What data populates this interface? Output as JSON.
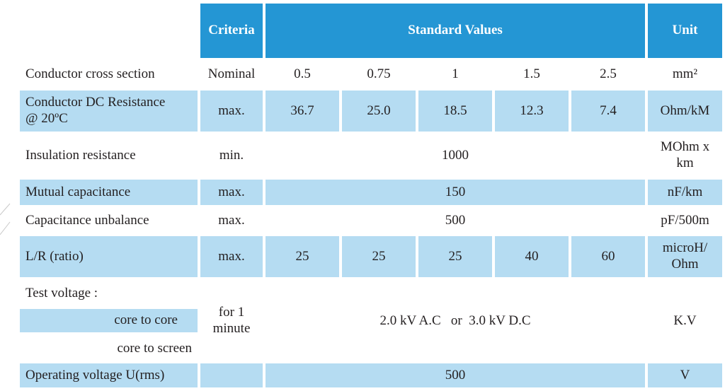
{
  "header": {
    "criteria": "Criteria",
    "standard_values": "Standard Values",
    "unit": "Unit"
  },
  "rows": {
    "cross_section": {
      "label": "Conductor cross section",
      "criteria": "Nominal",
      "values": [
        "0.5",
        "0.75",
        "1",
        "1.5",
        "2.5"
      ],
      "unit": "mm²"
    },
    "dc_resistance": {
      "label": "Conductor DC Resistance",
      "label_2": "@ 20ºC",
      "criteria": "max.",
      "values": [
        "36.7",
        "25.0",
        "18.5",
        "12.3",
        "7.4"
      ],
      "unit": "Ohm/kM"
    },
    "insulation": {
      "label": "Insulation resistance",
      "criteria": "min.",
      "value": "1000",
      "unit_1": "MOhm x",
      "unit_2": "km"
    },
    "mutual_cap": {
      "label": "Mutual capacitance",
      "criteria": "max.",
      "value": "150",
      "unit": "nF/km"
    },
    "cap_unbalance": {
      "label": "Capacitance unbalance",
      "criteria": "max.",
      "value": "500",
      "unit": "pF/500m"
    },
    "lr_ratio": {
      "label": "L/R (ratio)",
      "criteria": "max.",
      "values": [
        "25",
        "25",
        "25",
        "40",
        "60"
      ],
      "unit_1": "microH/",
      "unit_2": "Ohm"
    },
    "test_voltage": {
      "label": "Test voltage :",
      "sub_1": "core to core",
      "sub_2": "core to screen",
      "criteria_1": "for 1",
      "criteria_2": "minute",
      "value": "2.0 kV A.C   or  3.0 kV D.C",
      "unit": "K.V"
    },
    "operating_voltage": {
      "label": "Operating voltage  U(rms)",
      "value": "500",
      "unit": "V"
    }
  }
}
